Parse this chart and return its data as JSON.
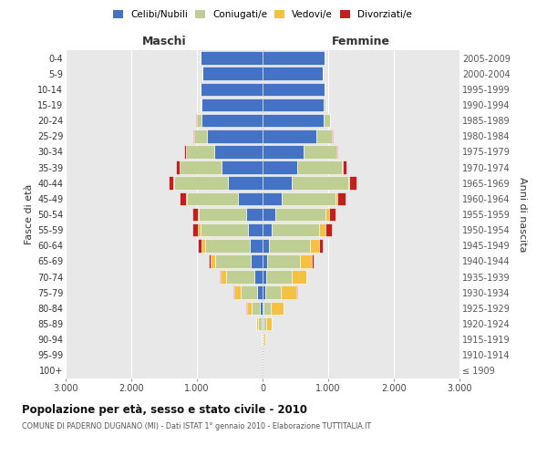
{
  "age_groups": [
    "100+",
    "95-99",
    "90-94",
    "85-89",
    "80-84",
    "75-79",
    "70-74",
    "65-69",
    "60-64",
    "55-59",
    "50-54",
    "45-49",
    "40-44",
    "35-39",
    "30-34",
    "25-29",
    "20-24",
    "15-19",
    "10-14",
    "5-9",
    "0-4"
  ],
  "birth_years": [
    "≤ 1909",
    "1910-1914",
    "1915-1919",
    "1920-1924",
    "1925-1929",
    "1930-1934",
    "1935-1939",
    "1940-1944",
    "1945-1949",
    "1950-1954",
    "1955-1959",
    "1960-1964",
    "1965-1969",
    "1970-1974",
    "1975-1979",
    "1980-1984",
    "1985-1989",
    "1990-1994",
    "1995-1999",
    "2000-2004",
    "2005-2009"
  ],
  "colors": {
    "celibe": "#4472C4",
    "coniugato": "#BFCE93",
    "vedovo": "#F5C142",
    "divorziato": "#C0211F"
  },
  "male_celibe": [
    0,
    1,
    3,
    15,
    40,
    80,
    130,
    180,
    200,
    220,
    250,
    380,
    530,
    620,
    730,
    850,
    930,
    930,
    940,
    910,
    950
  ],
  "male_coniugato": [
    0,
    1,
    8,
    50,
    130,
    260,
    420,
    540,
    680,
    730,
    720,
    770,
    820,
    640,
    440,
    195,
    75,
    18,
    4,
    1,
    0
  ],
  "male_vedovo": [
    0,
    1,
    8,
    35,
    70,
    95,
    95,
    75,
    55,
    38,
    18,
    12,
    8,
    4,
    2,
    1,
    1,
    0,
    0,
    0,
    0
  ],
  "male_divorziato": [
    0,
    0,
    1,
    2,
    4,
    4,
    8,
    18,
    45,
    75,
    75,
    95,
    75,
    55,
    18,
    4,
    1,
    0,
    0,
    0,
    0
  ],
  "female_nubile": [
    0,
    1,
    3,
    8,
    18,
    35,
    55,
    75,
    95,
    140,
    195,
    290,
    440,
    530,
    630,
    820,
    930,
    930,
    940,
    910,
    950
  ],
  "female_coniugata": [
    0,
    1,
    8,
    45,
    110,
    240,
    385,
    490,
    630,
    720,
    770,
    820,
    870,
    680,
    490,
    240,
    95,
    28,
    4,
    1,
    0
  ],
  "female_vedova": [
    0,
    2,
    25,
    90,
    190,
    240,
    220,
    190,
    140,
    95,
    55,
    28,
    12,
    6,
    2,
    1,
    1,
    0,
    0,
    0,
    0
  ],
  "female_divorziata": [
    0,
    0,
    1,
    2,
    4,
    6,
    8,
    18,
    55,
    95,
    95,
    120,
    110,
    65,
    18,
    4,
    1,
    0,
    0,
    0,
    0
  ],
  "title": "Popolazione per età, sesso e stato civile - 2010",
  "subtitle": "COMUNE DI PADERNO DUGNANO (MI) - Dati ISTAT 1° gennaio 2010 - Elaborazione TUTTITALIA.IT",
  "maschi_label": "Maschi",
  "femmine_label": "Femmine",
  "fasce_label": "Fasce di età",
  "anni_label": "Anni di nascita",
  "legend_labels": [
    "Celibi/Nubili",
    "Coniugati/e",
    "Vedovi/e",
    "Divorziati/e"
  ],
  "xlim": 3000,
  "bg_color": "#e8e8e8"
}
